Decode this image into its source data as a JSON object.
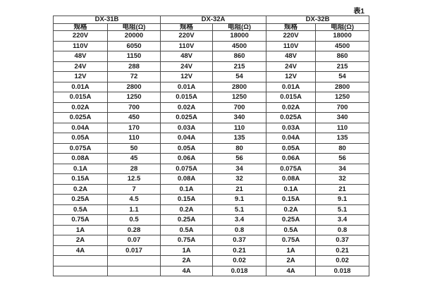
{
  "page": {
    "caption": "表1",
    "colors": {
      "background": "#ffffff",
      "border": "#4d4d4d",
      "text": "#1a1a1a"
    }
  },
  "table": {
    "groups": [
      {
        "name": "DX-31B",
        "spec_header": "规格",
        "res_header": "电阻(Ω)",
        "rows": [
          [
            "220V",
            "20000"
          ],
          [
            "110V",
            "6050"
          ],
          [
            "48V",
            "1150"
          ],
          [
            "24V",
            "288"
          ],
          [
            "12V",
            "72"
          ],
          [
            "0.01A",
            "2800"
          ],
          [
            "0.015A",
            "1250"
          ],
          [
            "0.02A",
            "700"
          ],
          [
            "0.025A",
            "450"
          ],
          [
            "0.04A",
            "170"
          ],
          [
            "0.05A",
            "110"
          ],
          [
            "0.075A",
            "50"
          ],
          [
            "0.08A",
            "45"
          ],
          [
            "0.1A",
            "28"
          ],
          [
            "0.15A",
            "12.5"
          ],
          [
            "0.2A",
            "7"
          ],
          [
            "0.25A",
            "4.5"
          ],
          [
            "0.5A",
            "1.1"
          ],
          [
            "0.75A",
            "0.5"
          ],
          [
            "1A",
            "0.28"
          ],
          [
            "2A",
            "0.07"
          ],
          [
            "4A",
            "0.017"
          ],
          [
            "",
            ""
          ],
          [
            "",
            ""
          ]
        ]
      },
      {
        "name": "DX-32A",
        "spec_header": "规格",
        "res_header": "电阻(Ω)",
        "rows": [
          [
            "220V",
            "18000"
          ],
          [
            "110V",
            "4500"
          ],
          [
            "48V",
            "860"
          ],
          [
            "24V",
            "215"
          ],
          [
            "12V",
            "54"
          ],
          [
            "0.01A",
            "2800"
          ],
          [
            "0.015A",
            "1250"
          ],
          [
            "0.02A",
            "700"
          ],
          [
            "0.025A",
            "340"
          ],
          [
            "0.03A",
            "110"
          ],
          [
            "0.04A",
            "135"
          ],
          [
            "0.05A",
            "80"
          ],
          [
            "0.06A",
            "56"
          ],
          [
            "0.075A",
            "34"
          ],
          [
            "0.08A",
            "32"
          ],
          [
            "0.1A",
            "21"
          ],
          [
            "0.15A",
            "9.1"
          ],
          [
            "0.2A",
            "5.1"
          ],
          [
            "0.25A",
            "3.4"
          ],
          [
            "0.5A",
            "0.8"
          ],
          [
            "0.75A",
            "0.37"
          ],
          [
            "1A",
            "0.21"
          ],
          [
            "2A",
            "0.02"
          ],
          [
            "4A",
            "0.018"
          ]
        ]
      },
      {
        "name": "DX-32B",
        "spec_header": "规格",
        "res_header": "电阻(Ω)",
        "rows": [
          [
            "220V",
            "18000"
          ],
          [
            "110V",
            "4500"
          ],
          [
            "48V",
            "860"
          ],
          [
            "24V",
            "215"
          ],
          [
            "12V",
            "54"
          ],
          [
            "0.01A",
            "2800"
          ],
          [
            "0.015A",
            "1250"
          ],
          [
            "0.02A",
            "700"
          ],
          [
            "0.025A",
            "340"
          ],
          [
            "0.03A",
            "110"
          ],
          [
            "0.04A",
            "135"
          ],
          [
            "0.05A",
            "80"
          ],
          [
            "0.06A",
            "56"
          ],
          [
            "0.075A",
            "34"
          ],
          [
            "0.08A",
            "32"
          ],
          [
            "0.1A",
            "21"
          ],
          [
            "0.15A",
            "9.1"
          ],
          [
            "0.2A",
            "5.1"
          ],
          [
            "0.25A",
            "3.4"
          ],
          [
            "0.5A",
            "0.8"
          ],
          [
            "0.75A",
            "0.37"
          ],
          [
            "1A",
            "0.21"
          ],
          [
            "2A",
            "0.02"
          ],
          [
            "4A",
            "0.018"
          ]
        ]
      }
    ]
  }
}
